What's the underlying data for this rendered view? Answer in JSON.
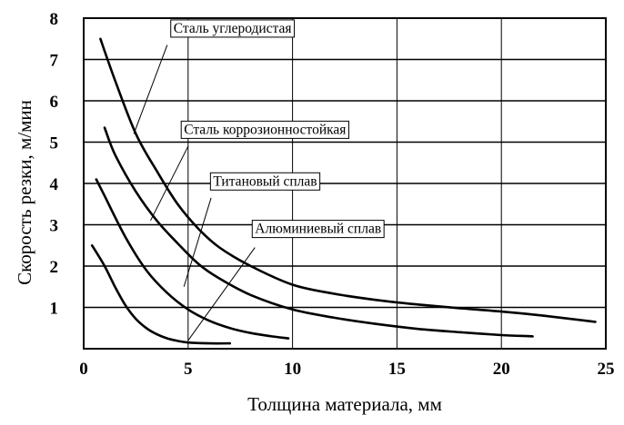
{
  "chart_data": {
    "type": "line",
    "title": "",
    "xlabel": "Толщина материала, мм",
    "ylabel": "Скорость резки, м/мин",
    "xlim": [
      0,
      25
    ],
    "ylim": [
      0,
      8
    ],
    "x_ticks": [
      {
        "value": 0,
        "label": "0"
      },
      {
        "value": 5,
        "label": "5"
      },
      {
        "value": 10,
        "label": "10"
      },
      {
        "value": 15,
        "label": "15"
      },
      {
        "value": 20,
        "label": "20"
      },
      {
        "value": 25,
        "label": "25"
      }
    ],
    "y_ticks": [
      {
        "value": 1,
        "label": "1"
      },
      {
        "value": 2,
        "label": "2"
      },
      {
        "value": 3,
        "label": "3"
      },
      {
        "value": 4,
        "label": "4"
      },
      {
        "value": 5,
        "label": "5"
      },
      {
        "value": 6,
        "label": "6"
      },
      {
        "value": 7,
        "label": "7"
      },
      {
        "value": 8,
        "label": "8"
      }
    ],
    "grid": true,
    "colors": {
      "line": "#000000",
      "background": "#ffffff"
    },
    "series": [
      {
        "name": "Сталь углеродистая",
        "x": [
          0.8,
          1.5,
          2.5,
          3.5,
          4.5,
          5.5,
          6.5,
          8,
          10,
          12,
          14,
          16,
          18,
          20,
          22,
          24.5
        ],
        "y": [
          7.5,
          6.5,
          5.2,
          4.3,
          3.5,
          2.9,
          2.45,
          2.0,
          1.55,
          1.33,
          1.18,
          1.07,
          0.98,
          0.9,
          0.8,
          0.65
        ]
      },
      {
        "name": "Сталь коррозионностойкая",
        "x": [
          1.0,
          1.5,
          2.5,
          3.5,
          4.5,
          5.5,
          6.5,
          8,
          10,
          12,
          14,
          16,
          18,
          20,
          21.5
        ],
        "y": [
          5.35,
          4.7,
          3.8,
          3.1,
          2.55,
          2.05,
          1.7,
          1.3,
          0.95,
          0.75,
          0.6,
          0.48,
          0.4,
          0.33,
          0.3
        ]
      },
      {
        "name": "Титановый сплав",
        "x": [
          0.6,
          1.0,
          2.0,
          3.0,
          4.0,
          5.0,
          6.0,
          7.0,
          8.0,
          9.0,
          9.8
        ],
        "y": [
          4.1,
          3.7,
          2.7,
          1.9,
          1.35,
          0.95,
          0.68,
          0.5,
          0.38,
          0.3,
          0.25
        ]
      },
      {
        "name": "Алюминиевый сплав",
        "x": [
          0.4,
          1.0,
          1.5,
          2.0,
          2.5,
          3.0,
          3.5,
          4.0,
          4.5,
          5.0,
          6.0,
          7.0
        ],
        "y": [
          2.5,
          2.0,
          1.5,
          1.05,
          0.72,
          0.5,
          0.35,
          0.25,
          0.19,
          0.15,
          0.13,
          0.13
        ]
      }
    ],
    "annotations": [
      {
        "text": "Сталь углеродистая",
        "box_x": 4.3,
        "box_y": 7.65,
        "line_from": [
          4.0,
          7.35
        ],
        "line_to": [
          2.4,
          5.2
        ]
      },
      {
        "text": "Сталь коррозионностойкая",
        "box_x": 4.8,
        "box_y": 5.2,
        "line_from": [
          5.0,
          4.9
        ],
        "line_to": [
          3.2,
          3.1
        ]
      },
      {
        "text": "Титановый сплав",
        "box_x": 6.2,
        "box_y": 3.95,
        "line_from": [
          6.1,
          3.65
        ],
        "line_to": [
          4.8,
          1.5
        ]
      },
      {
        "text": "Алюминиевый сплав",
        "box_x": 8.2,
        "box_y": 2.8,
        "line_from": [
          8.2,
          2.45
        ],
        "line_to": [
          5.0,
          0.2
        ]
      }
    ]
  }
}
